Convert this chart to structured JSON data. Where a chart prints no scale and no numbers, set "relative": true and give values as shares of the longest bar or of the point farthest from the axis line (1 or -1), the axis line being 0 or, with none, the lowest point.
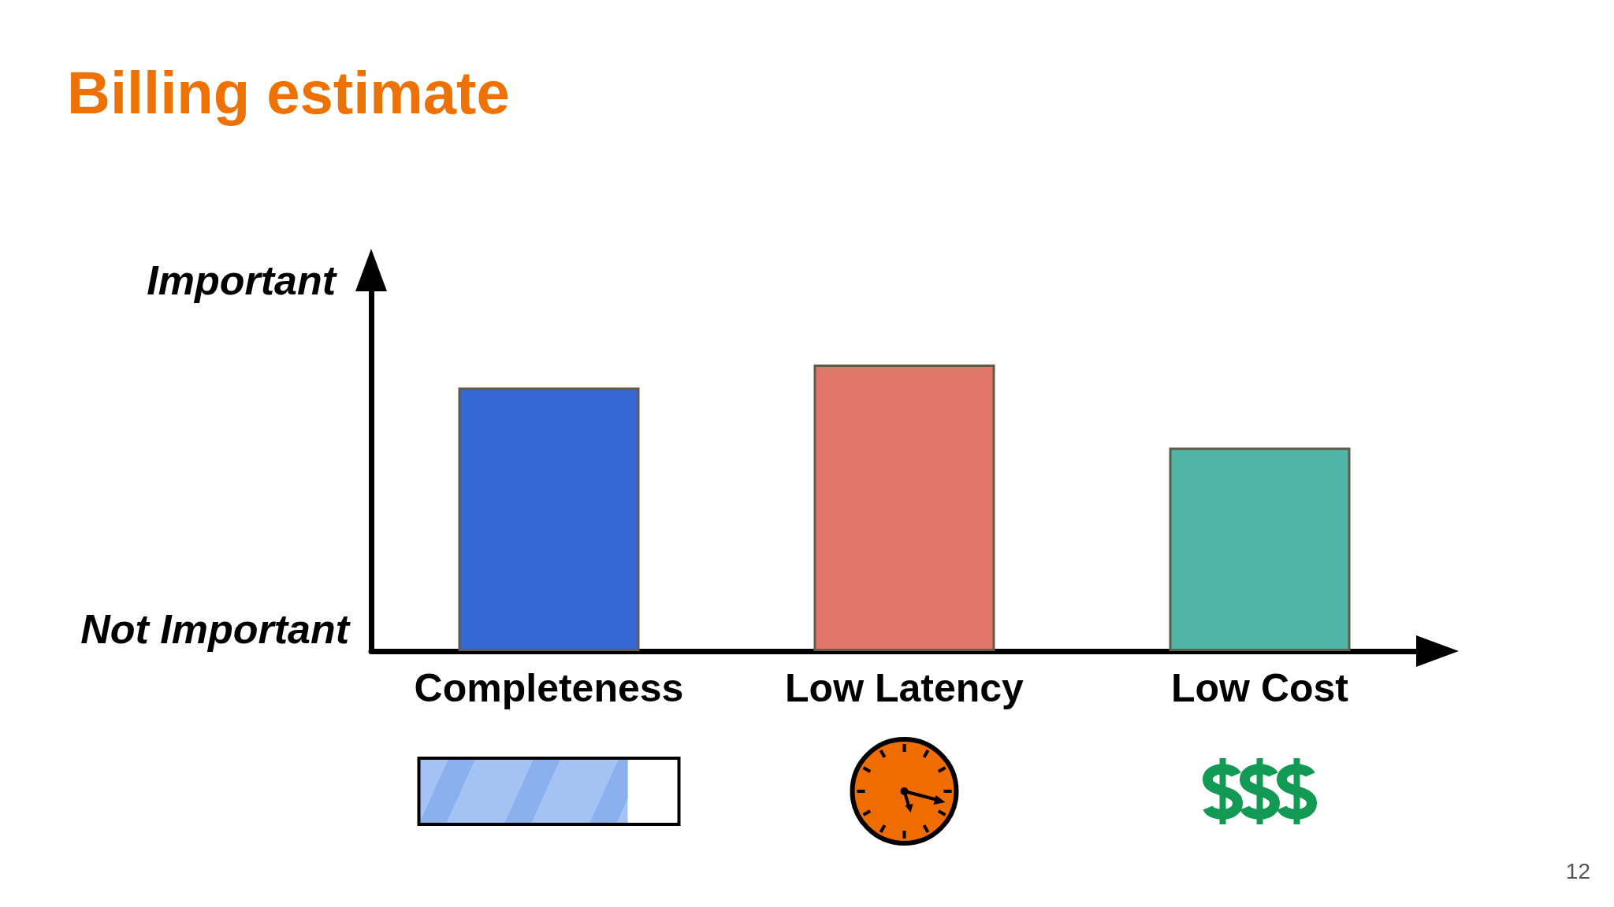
{
  "chart_data": {
    "type": "bar",
    "title": "Billing estimate",
    "categories": [
      "Completeness",
      "Low Latency",
      "Low Cost"
    ],
    "values": [
      0.92,
      1,
      0.71
    ],
    "colors": [
      "#3568d4",
      "#e4756a",
      "#50b5a6"
    ],
    "relative": true,
    "annotations": [
      "Important",
      "Not Important",
      "12"
    ]
  }
}
